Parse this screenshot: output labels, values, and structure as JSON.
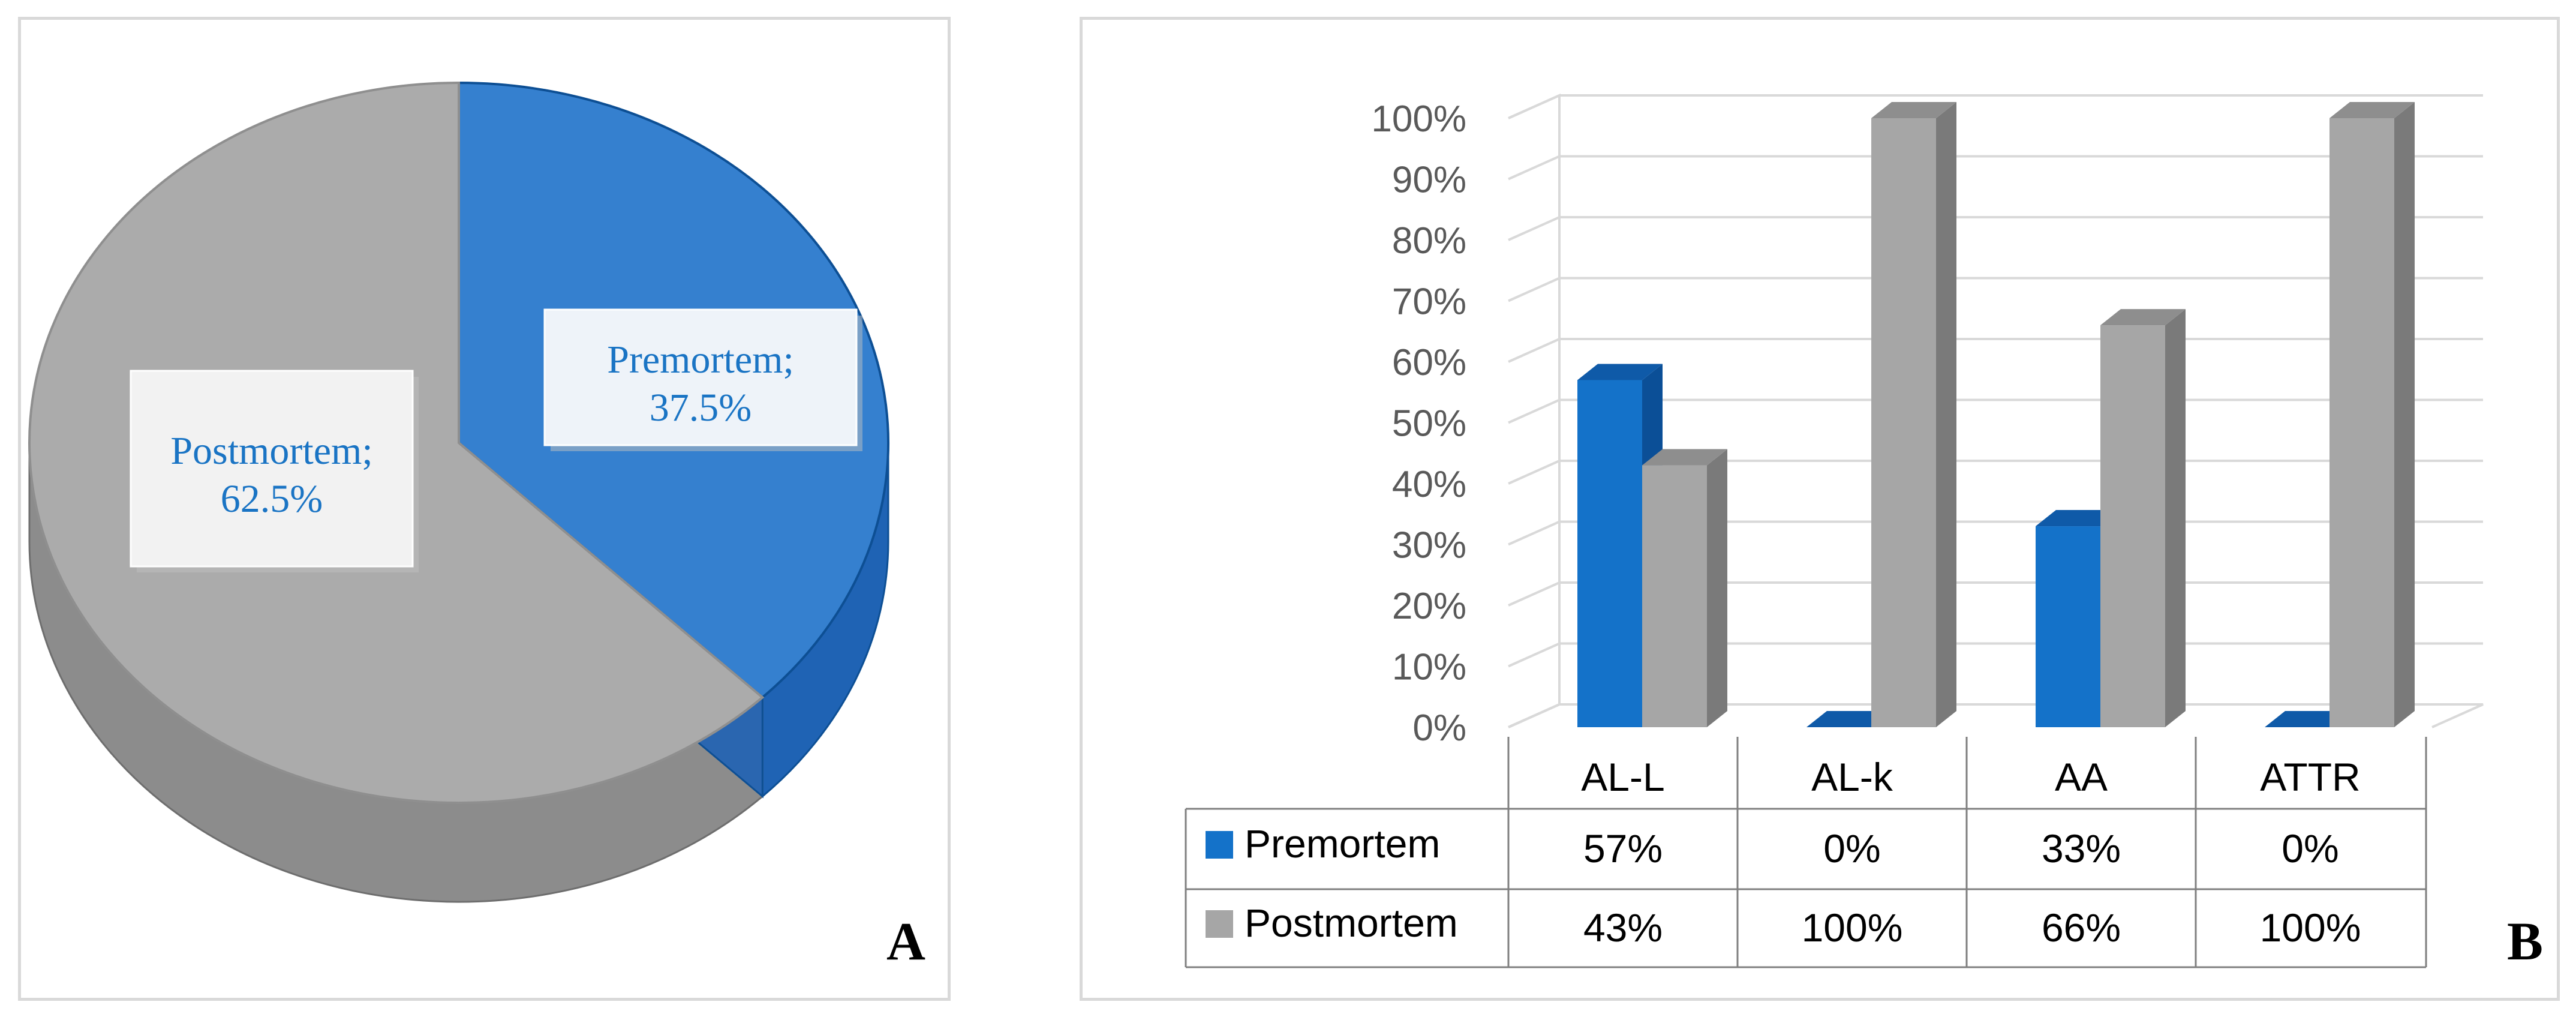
{
  "panels": {
    "a": {
      "letter": "A"
    },
    "b": {
      "letter": "B"
    }
  },
  "colors": {
    "premortem": "#1472c9",
    "premortem_dark": "#0d4f94",
    "postmortem": "#a6a6a6",
    "postmortem_dark": "#6e6e6e",
    "label_text": "#1a74c4",
    "grid": "#d9d9d9"
  },
  "chart_data": [
    {
      "type": "pie",
      "slices": [
        {
          "name": "Premortem",
          "value": 37.5,
          "label": "Premortem;",
          "value_label": "37.5%"
        },
        {
          "name": "Postmortem",
          "value": 62.5,
          "label": "Postmortem;",
          "value_label": "62.5%"
        }
      ]
    },
    {
      "type": "bar",
      "categories": [
        "AL-L",
        "AL-k",
        "AA",
        "ATTR"
      ],
      "series": [
        {
          "name": "Premortem",
          "values": [
            57,
            0,
            33,
            0
          ],
          "labels": [
            "57%",
            "0%",
            "33%",
            "0%"
          ]
        },
        {
          "name": "Postmortem",
          "values": [
            43,
            100,
            66,
            100
          ],
          "labels": [
            "43%",
            "100%",
            "66%",
            "100%"
          ]
        }
      ],
      "ylim": [
        0,
        100
      ],
      "yticks": [
        "0%",
        "10%",
        "20%",
        "30%",
        "40%",
        "50%",
        "60%",
        "70%",
        "80%",
        "90%",
        "100%"
      ],
      "grid": true,
      "legend": "data-table"
    }
  ]
}
